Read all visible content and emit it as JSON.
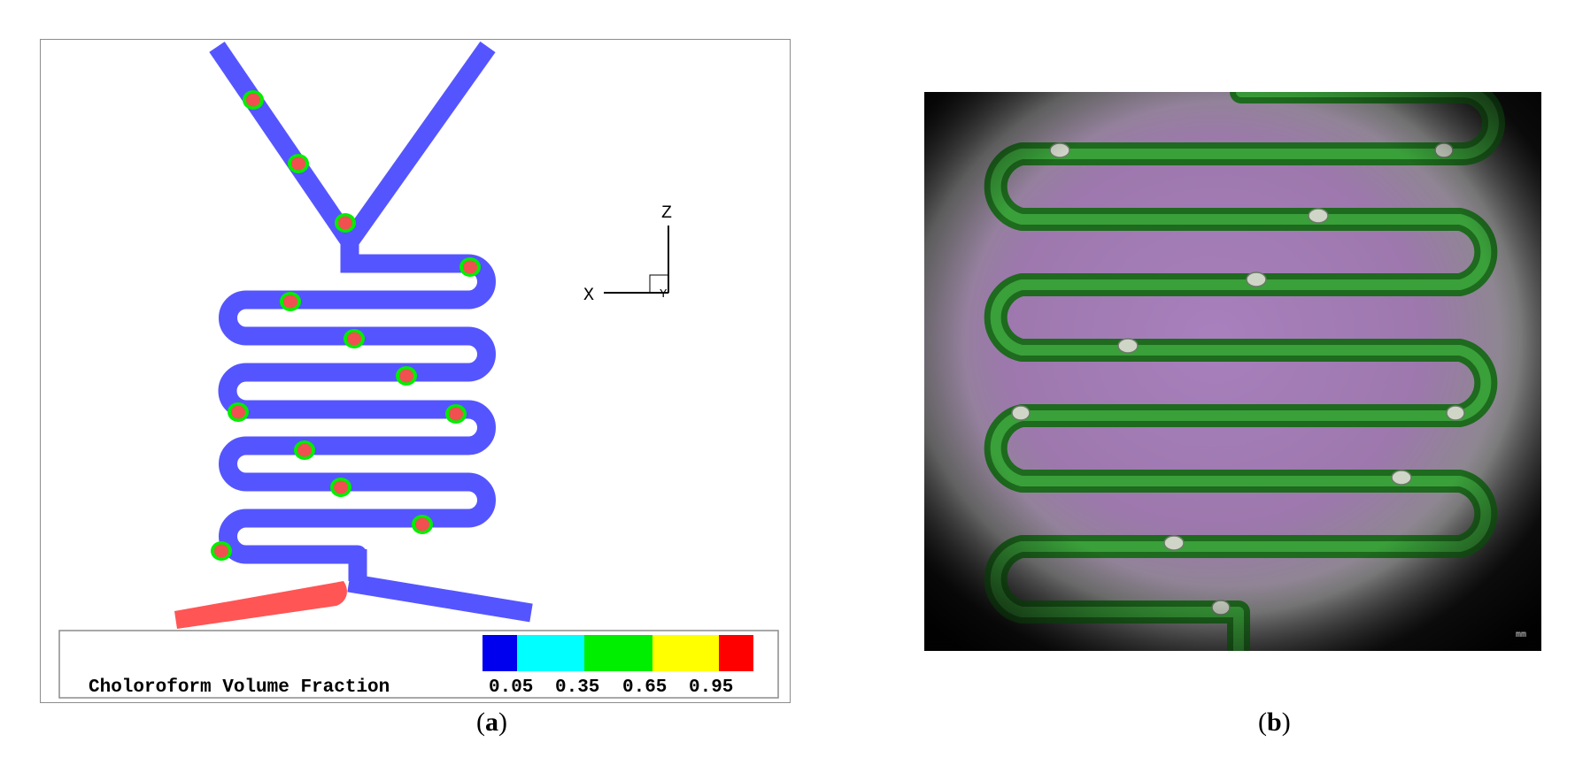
{
  "panel_a": {
    "legend_title": "Choloroform Volume Fraction",
    "legend_ticks": [
      "0.05",
      "0.35",
      "0.65",
      "0.95"
    ],
    "legend_colors": [
      "#0000ee",
      "#00ffff",
      "#00ee00",
      "#ffff00",
      "#ff0000"
    ],
    "axis_z": "Z",
    "axis_x": "X",
    "axis_y": "Y",
    "channel_color": "#5555ff",
    "droplet_color": "#f05050",
    "outlet_fill_color": "#ff5555"
  },
  "panel_b": {
    "scale_label": "mm",
    "channel_color": "#2a8a2a",
    "background_color": "#a37ab8"
  },
  "captions": {
    "a_letter": "a",
    "b_letter": "b",
    "open": "(",
    "close": ")"
  }
}
